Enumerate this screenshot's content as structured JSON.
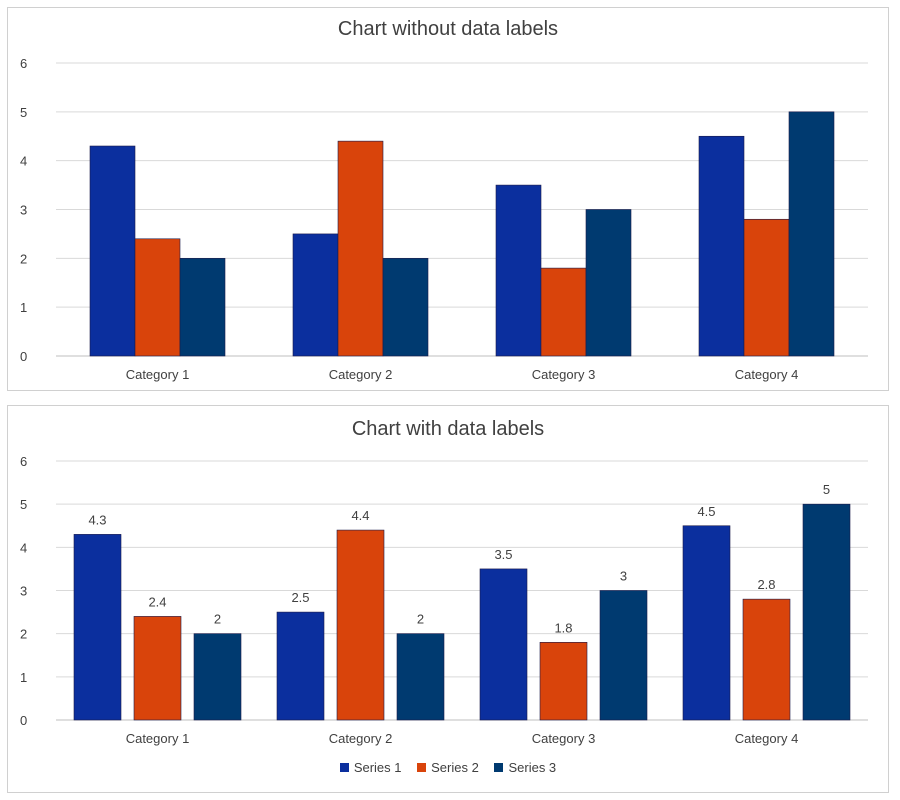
{
  "chart_data": [
    {
      "type": "bar",
      "title": "Chart without data labels",
      "categories": [
        "Category 1",
        "Category 2",
        "Category 3",
        "Category 4"
      ],
      "series": [
        {
          "values": [
            4.3,
            2.5,
            3.5,
            4.5
          ],
          "color": "#0b2f9e"
        },
        {
          "values": [
            2.4,
            4.4,
            1.8,
            2.8
          ],
          "color": "#d9440b"
        },
        {
          "values": [
            2,
            2,
            3,
            5
          ],
          "color": "#003a70"
        }
      ],
      "ylim": [
        0,
        6
      ],
      "yticks": [
        "0",
        "1",
        "2",
        "3",
        "4",
        "5",
        "6"
      ],
      "grid": true,
      "data_labels": false,
      "legend": "none"
    },
    {
      "type": "bar",
      "title": "Chart with data labels",
      "categories": [
        "Category 1",
        "Category 2",
        "Category 3",
        "Category 4"
      ],
      "series": [
        {
          "name": "Series 1",
          "values": [
            4.3,
            2.5,
            3.5,
            4.5
          ],
          "labels": [
            "4.3",
            "2.5",
            "3.5",
            "4.5"
          ],
          "color": "#0b2f9e"
        },
        {
          "name": "Series 2",
          "values": [
            2.4,
            4.4,
            1.8,
            2.8
          ],
          "labels": [
            "2.4",
            "4.4",
            "1.8",
            "2.8"
          ],
          "color": "#d9440b"
        },
        {
          "name": "Series 3",
          "values": [
            2,
            2,
            3,
            5
          ],
          "labels": [
            "2",
            "2",
            "3",
            "5"
          ],
          "color": "#003a70"
        }
      ],
      "ylim": [
        0,
        6
      ],
      "yticks": [
        "0",
        "1",
        "2",
        "3",
        "4",
        "5",
        "6"
      ],
      "grid": true,
      "data_labels": true,
      "legend": "bottom"
    }
  ]
}
